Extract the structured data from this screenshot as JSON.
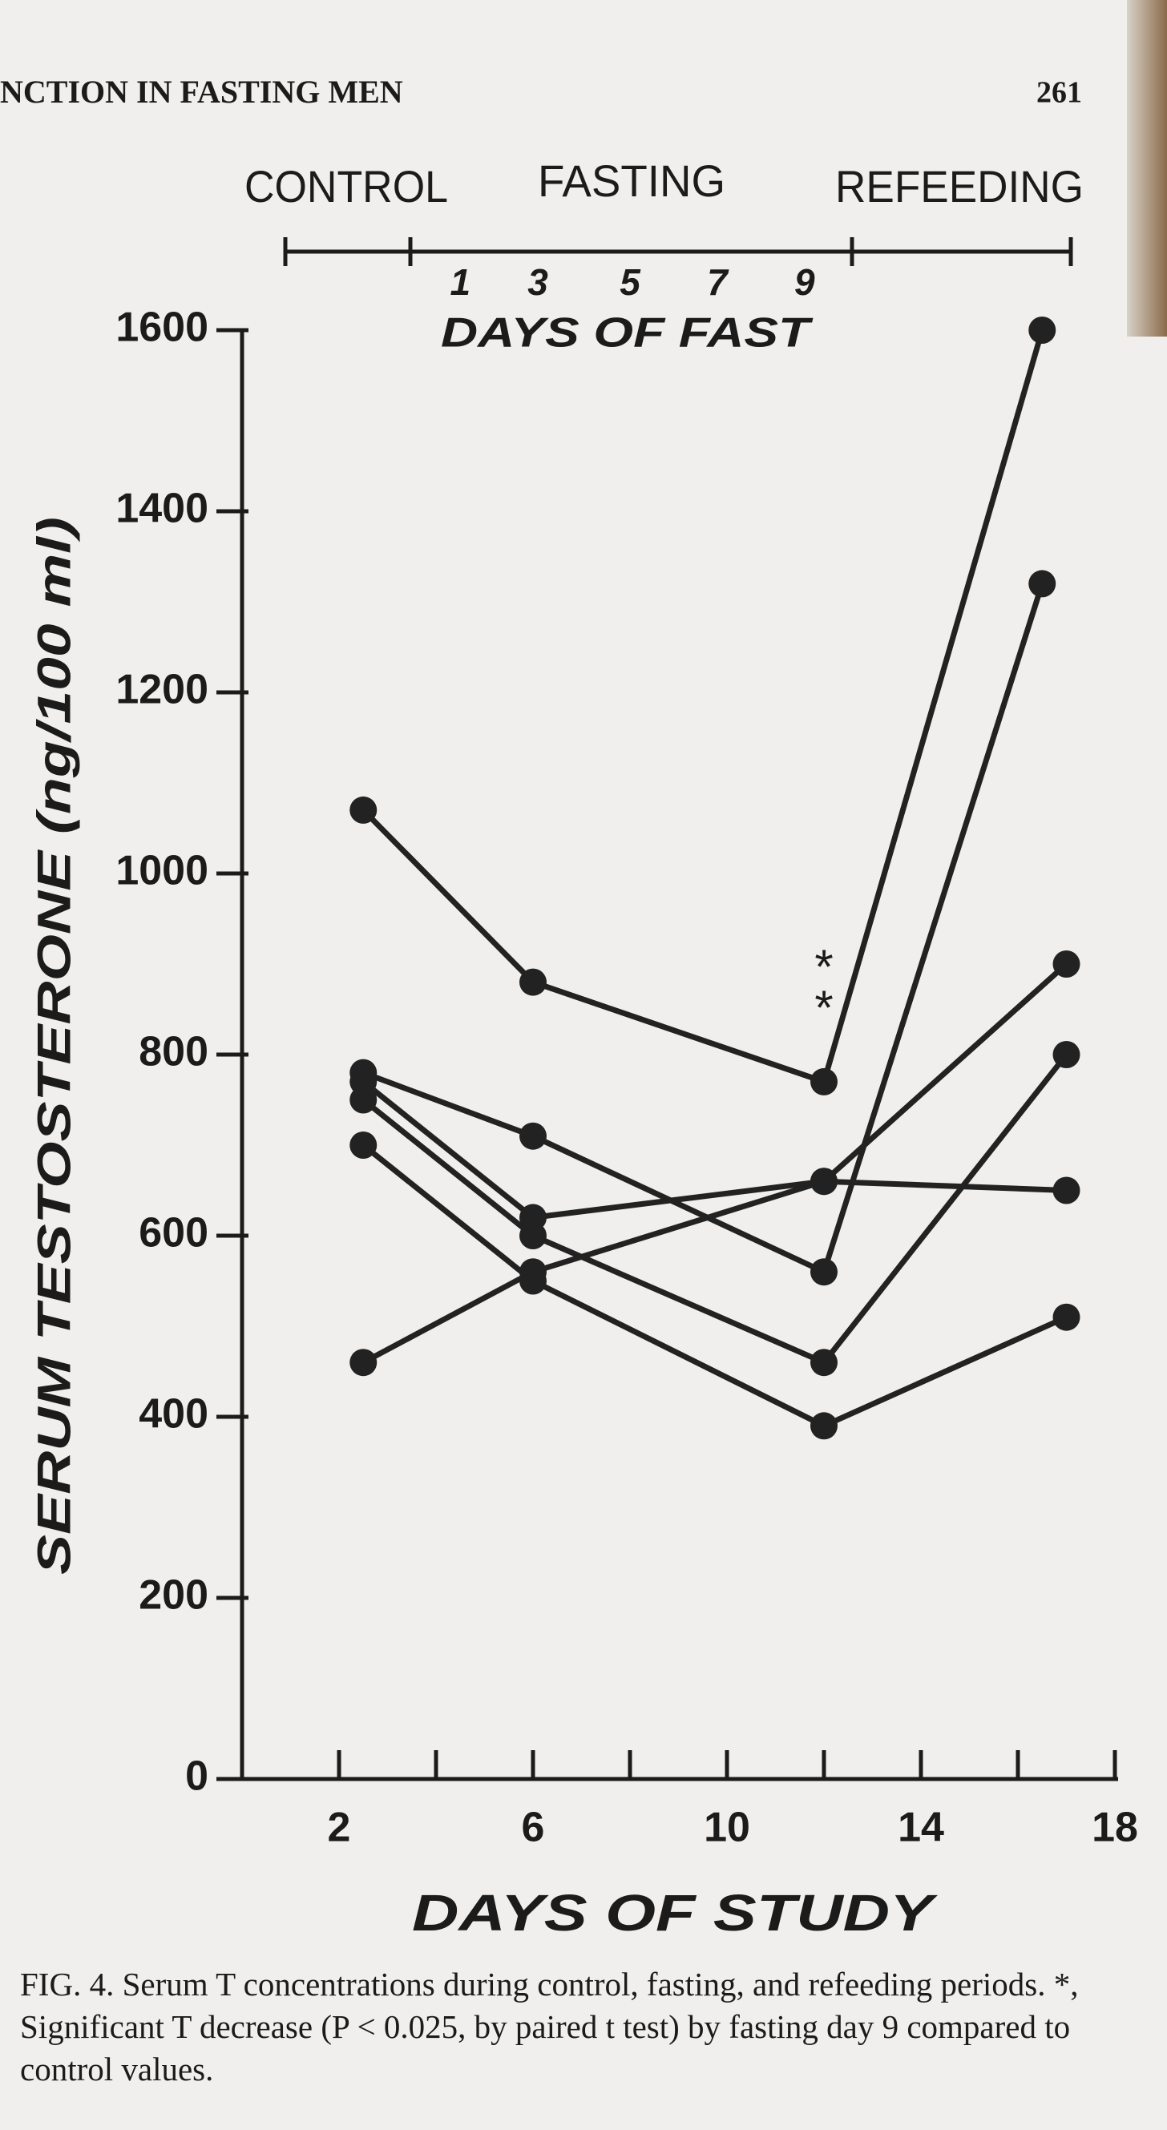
{
  "page_header": {
    "running_title": "NCTION IN FASTING MEN",
    "page_number": "261"
  },
  "chart_data": {
    "type": "line",
    "phases": [
      "CONTROL",
      "FASTING",
      "REFEEDING"
    ],
    "fast_axis_title": "DAYS OF FAST",
    "fast_day_ticks": [
      {
        "value": 4.5,
        "label": "1"
      },
      {
        "value": 6.1,
        "label": "3"
      },
      {
        "value": 8,
        "label": "5"
      },
      {
        "value": 9.8,
        "label": "7"
      },
      {
        "value": 11.6,
        "label": "9"
      }
    ],
    "ylabel": "SERUM TESTOSTERONE (ng/100 ml)",
    "xlabel": "DAYS OF STUDY",
    "xlim": [
      0,
      18
    ],
    "xticks": [
      2,
      6,
      10,
      14,
      18
    ],
    "xminorticks": [
      4,
      8,
      12,
      16
    ],
    "ylim": [
      0,
      1600
    ],
    "yticks": [
      0,
      200,
      400,
      600,
      800,
      1000,
      1200,
      1400,
      1600
    ],
    "annotations": [
      {
        "text": "*",
        "x": 12,
        "y": 905
      },
      {
        "text": "*",
        "x": 12,
        "y": 860
      }
    ],
    "series": [
      {
        "color": "#222222",
        "x": [
          2.5,
          6,
          12,
          16.5
        ],
        "values": [
          1070,
          880,
          770,
          1600
        ]
      },
      {
        "color": "#222222",
        "x": [
          2.5,
          6,
          12,
          16.5
        ],
        "values": [
          780,
          710,
          560,
          1320
        ]
      },
      {
        "color": "#222222",
        "x": [
          2.5,
          6,
          12,
          17
        ],
        "values": [
          770,
          620,
          660,
          650
        ]
      },
      {
        "color": "#222222",
        "x": [
          2.5,
          6,
          12,
          17
        ],
        "values": [
          750,
          600,
          460,
          800
        ]
      },
      {
        "color": "#222222",
        "x": [
          2.5,
          6,
          12,
          17
        ],
        "values": [
          700,
          550,
          390,
          510
        ]
      },
      {
        "color": "#222222",
        "x": [
          2.5,
          6,
          12,
          17
        ],
        "values": [
          460,
          560,
          660,
          900
        ]
      }
    ]
  },
  "caption": "FIG. 4. Serum T concentrations during control, fasting, and refeeding periods. *, Significant T decrease (P < 0.025, by paired t test) by fasting day 9 compared to control values."
}
